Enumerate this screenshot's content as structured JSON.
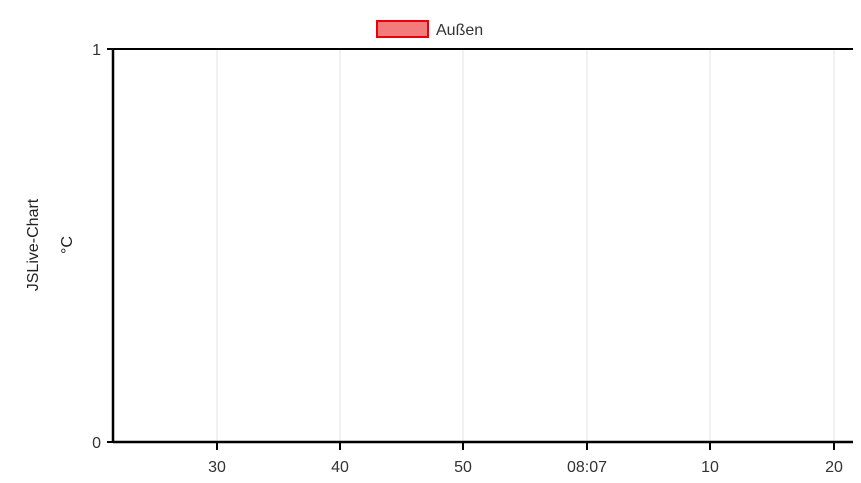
{
  "chart_data": {
    "type": "line",
    "title": "",
    "y_axis_titles": [
      "JSLive-Chart",
      "°C"
    ],
    "ylim": [
      0,
      1
    ],
    "y_ticks": [
      "1",
      "0"
    ],
    "x_ticks": [
      "30",
      "40",
      "50",
      "08:07",
      "10",
      "20"
    ],
    "grid": "vertical",
    "legend_position": "top-center",
    "series": [
      {
        "name": "Außen",
        "color": "#e8000b",
        "fill": "#f47b7b",
        "values": []
      }
    ]
  }
}
